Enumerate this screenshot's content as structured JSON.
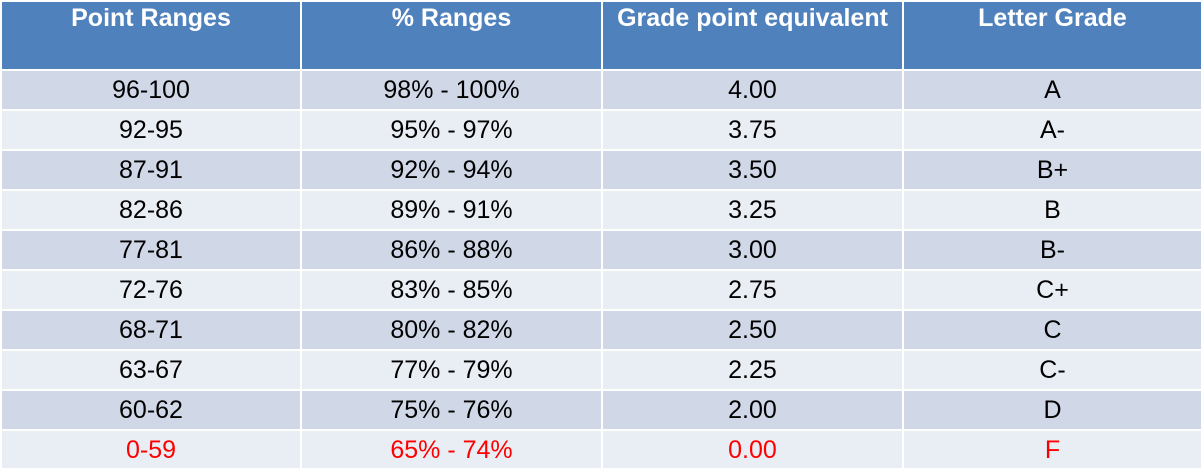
{
  "table": {
    "header": [
      "Point Ranges",
      "% Ranges",
      "Grade point equivalent",
      "Letter Grade"
    ],
    "rows": [
      [
        "96-100",
        "98% - 100%",
        "4.00",
        "A"
      ],
      [
        "92-95",
        "95% - 97%",
        "3.75",
        "A-"
      ],
      [
        "87-91",
        "92% - 94%",
        "3.50",
        "B+"
      ],
      [
        "82-86",
        "89% - 91%",
        "3.25",
        "B"
      ],
      [
        "77-81",
        "86% - 88%",
        "3.00",
        "B-"
      ],
      [
        "72-76",
        "83% - 85%",
        "2.75",
        "C+"
      ],
      [
        "68-71",
        "80% - 82%",
        "2.50",
        "C"
      ],
      [
        "63-67",
        "77% - 79%",
        "2.25",
        "C-"
      ],
      [
        "60-62",
        "75% - 76%",
        "2.00",
        "D"
      ],
      [
        "0-59",
        "65% - 74%",
        "0.00",
        "F"
      ]
    ]
  }
}
